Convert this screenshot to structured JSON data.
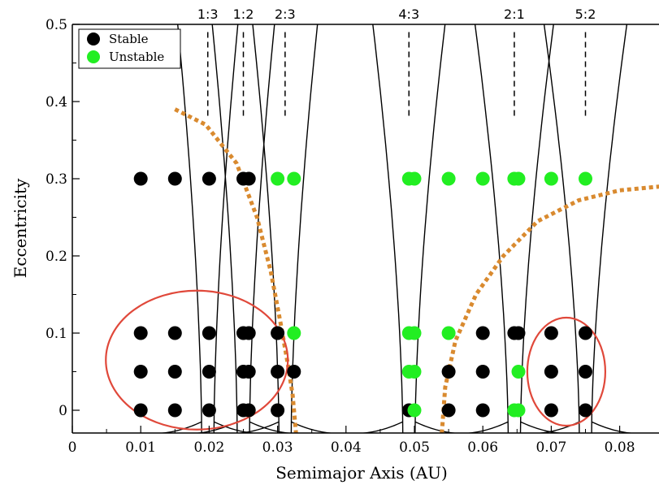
{
  "chart_data": {
    "type": "scatter",
    "title": "",
    "xlabel": "Semimajor Axis (AU)",
    "ylabel": "Eccentricity",
    "xlim": [
      0,
      0.085
    ],
    "ylim": [
      -0.03,
      0.5
    ],
    "x_ticks": [
      0,
      0.01,
      0.02,
      0.03,
      0.04,
      0.05,
      0.06,
      0.07,
      0.08
    ],
    "x_tick_labels": [
      "0",
      "0.01",
      "0.02",
      "0.03",
      "0.04",
      "0.05",
      "0.06",
      "0.07",
      "0.08"
    ],
    "y_ticks": [
      0,
      0.1,
      0.2,
      0.3,
      0.4,
      0.5
    ],
    "y_tick_labels": [
      "0",
      "0.1",
      "0.2",
      "0.3",
      "0.4",
      "0.5"
    ],
    "grid": false,
    "legend_position": "top-left",
    "colors": {
      "Stable": "#000000",
      "Unstable": "#22ee22",
      "region_ellipse": "#e0483a",
      "stability_curve": "#d98a2f",
      "resonance": "#000000"
    },
    "resonances": [
      {
        "label": "1:3",
        "a": 0.0198
      },
      {
        "label": "1:2",
        "a": 0.025
      },
      {
        "label": "2:3",
        "a": 0.0311
      },
      {
        "label": "4:3",
        "a": 0.0492
      },
      {
        "label": "2:1",
        "a": 0.0646
      },
      {
        "label": "5:2",
        "a": 0.075
      }
    ],
    "series": [
      {
        "name": "Stable",
        "points": [
          [
            0.01,
            0.3
          ],
          [
            0.015,
            0.3
          ],
          [
            0.02,
            0.3
          ],
          [
            0.025,
            0.3
          ],
          [
            0.0258,
            0.3
          ],
          [
            0.01,
            0.1
          ],
          [
            0.015,
            0.1
          ],
          [
            0.02,
            0.1
          ],
          [
            0.025,
            0.1
          ],
          [
            0.0258,
            0.1
          ],
          [
            0.03,
            0.1
          ],
          [
            0.01,
            0.05
          ],
          [
            0.015,
            0.05
          ],
          [
            0.02,
            0.05
          ],
          [
            0.025,
            0.05
          ],
          [
            0.0258,
            0.05
          ],
          [
            0.03,
            0.05
          ],
          [
            0.0324,
            0.05
          ],
          [
            0.01,
            0.0
          ],
          [
            0.015,
            0.0
          ],
          [
            0.02,
            0.0
          ],
          [
            0.025,
            0.0
          ],
          [
            0.0258,
            0.0
          ],
          [
            0.03,
            0.0
          ],
          [
            0.0492,
            0.0
          ],
          [
            0.06,
            0.1
          ],
          [
            0.0646,
            0.1
          ],
          [
            0.0652,
            0.1
          ],
          [
            0.07,
            0.1
          ],
          [
            0.075,
            0.1
          ],
          [
            0.055,
            0.05
          ],
          [
            0.06,
            0.05
          ],
          [
            0.07,
            0.05
          ],
          [
            0.075,
            0.05
          ],
          [
            0.055,
            0.0
          ],
          [
            0.06,
            0.0
          ],
          [
            0.07,
            0.0
          ],
          [
            0.075,
            0.0
          ]
        ]
      },
      {
        "name": "Unstable",
        "points": [
          [
            0.03,
            0.3
          ],
          [
            0.0324,
            0.3
          ],
          [
            0.0492,
            0.3
          ],
          [
            0.05,
            0.3
          ],
          [
            0.055,
            0.3
          ],
          [
            0.06,
            0.3
          ],
          [
            0.0646,
            0.3
          ],
          [
            0.0652,
            0.3
          ],
          [
            0.07,
            0.3
          ],
          [
            0.075,
            0.3
          ],
          [
            0.0324,
            0.1
          ],
          [
            0.0492,
            0.1
          ],
          [
            0.05,
            0.1
          ],
          [
            0.055,
            0.1
          ],
          [
            0.0492,
            0.05
          ],
          [
            0.05,
            0.05
          ],
          [
            0.0652,
            0.05
          ],
          [
            0.05,
            0.0
          ],
          [
            0.0646,
            0.0
          ],
          [
            0.0652,
            0.0
          ]
        ]
      }
    ],
    "stability_boundaries": [
      [
        [
          0.015,
          0.39
        ],
        [
          0.0195,
          0.37
        ],
        [
          0.024,
          0.32
        ],
        [
          0.027,
          0.25
        ],
        [
          0.029,
          0.18
        ],
        [
          0.0305,
          0.11
        ],
        [
          0.0315,
          0.06
        ],
        [
          0.0322,
          0.02
        ],
        [
          0.0327,
          -0.03
        ]
      ],
      [
        [
          0.054,
          -0.03
        ],
        [
          0.0545,
          0.03
        ],
        [
          0.056,
          0.09
        ],
        [
          0.059,
          0.15
        ],
        [
          0.063,
          0.2
        ],
        [
          0.068,
          0.245
        ],
        [
          0.074,
          0.272
        ],
        [
          0.08,
          0.285
        ],
        [
          0.086,
          0.29
        ]
      ]
    ],
    "ellipses": [
      {
        "cx": 0.0182,
        "cy": 0.065,
        "rx": 0.0133,
        "ry": 0.09
      },
      {
        "cx": 0.0722,
        "cy": 0.05,
        "rx": 0.0057,
        "ry": 0.07
      }
    ]
  }
}
